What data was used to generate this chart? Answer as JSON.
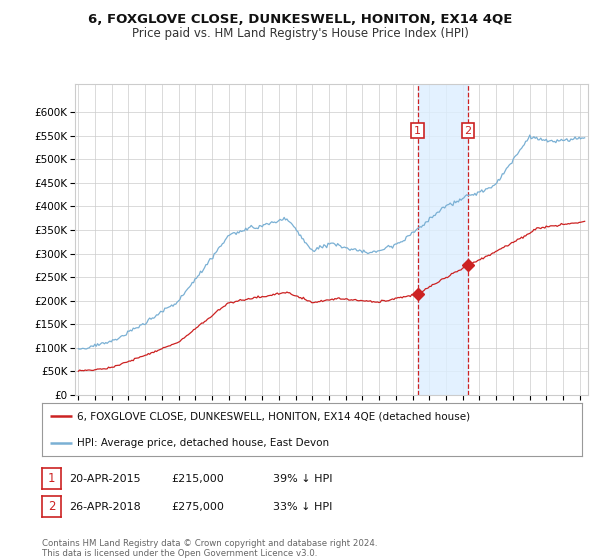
{
  "title": "6, FOXGLOVE CLOSE, DUNKESWELL, HONITON, EX14 4QE",
  "subtitle": "Price paid vs. HM Land Registry's House Price Index (HPI)",
  "sale1_date": 2015.3,
  "sale1_price": 215000,
  "sale1_label": "1",
  "sale1_display": "20-APR-2015",
  "sale1_amount": "£215,000",
  "sale1_hpi": "39% ↓ HPI",
  "sale2_date": 2018.32,
  "sale2_price": 275000,
  "sale2_label": "2",
  "sale2_display": "26-APR-2018",
  "sale2_amount": "£275,000",
  "sale2_hpi": "33% ↓ HPI",
  "legend1": "6, FOXGLOVE CLOSE, DUNKESWELL, HONITON, EX14 4QE (detached house)",
  "legend2": "HPI: Average price, detached house, East Devon",
  "footer": "Contains HM Land Registry data © Crown copyright and database right 2024.\nThis data is licensed under the Open Government Licence v3.0.",
  "hpi_color": "#7ab0d4",
  "price_color": "#cc2222",
  "marker_box_color": "#cc2222",
  "shade_color": "#ddeeff",
  "grid_color": "#cccccc",
  "bg_color": "#ffffff",
  "ylim": [
    0,
    660000
  ],
  "yticks": [
    0,
    50000,
    100000,
    150000,
    200000,
    250000,
    300000,
    350000,
    400000,
    450000,
    500000,
    550000,
    600000
  ],
  "xlim_start": 1994.8,
  "xlim_end": 2025.5
}
